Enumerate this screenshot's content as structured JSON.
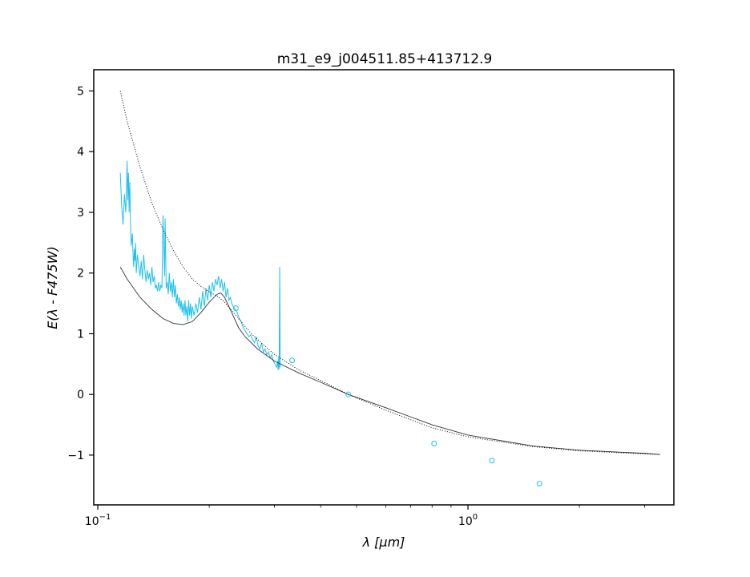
{
  "chart_data": {
    "type": "line",
    "title": "m31_e9_j004511.85+413712.9",
    "xlabel": "λ [μm]",
    "ylabel": "E(λ - F475W)",
    "xscale": "log",
    "xlim": [
      0.0975,
      3.6
    ],
    "ylim": [
      -1.82,
      5.35
    ],
    "xticks": [
      {
        "value": 0.1,
        "label_base": "10",
        "label_exp": "−1"
      },
      {
        "value": 1.0,
        "label_base": "10",
        "label_exp": "0"
      }
    ],
    "yticks": [
      {
        "value": -1,
        "label": "−1"
      },
      {
        "value": 0,
        "label": "0"
      },
      {
        "value": 1,
        "label": "1"
      },
      {
        "value": 2,
        "label": "2"
      },
      {
        "value": 3,
        "label": "3"
      },
      {
        "value": 4,
        "label": "4"
      },
      {
        "value": 5,
        "label": "5"
      }
    ],
    "grid": false,
    "colors": {
      "spectrum": "#1ec0f0",
      "photometry": "#1ec0f0",
      "model": "#333333",
      "model_dotted": "#000000"
    },
    "series": [
      {
        "style": "spectrum-line",
        "x": [
          0.115,
          0.116,
          0.117,
          0.118,
          0.119,
          0.1195,
          0.12,
          0.1205,
          0.121,
          0.1215,
          0.122,
          0.1225,
          0.123,
          0.124,
          0.1245,
          0.125,
          0.1255,
          0.126,
          0.1265,
          0.127,
          0.128,
          0.129,
          0.13,
          0.131,
          0.132,
          0.133,
          0.134,
          0.135,
          0.136,
          0.137,
          0.138,
          0.139,
          0.14,
          0.141,
          0.142,
          0.143,
          0.144,
          0.145,
          0.146,
          0.147,
          0.148,
          0.149,
          0.15,
          0.1505,
          0.151,
          0.1515,
          0.152,
          0.153,
          0.154,
          0.155,
          0.156,
          0.157,
          0.158,
          0.159,
          0.16,
          0.161,
          0.162,
          0.163,
          0.164,
          0.165,
          0.166,
          0.167,
          0.168,
          0.169,
          0.17,
          0.171,
          0.172,
          0.173,
          0.174,
          0.175,
          0.176,
          0.177,
          0.178,
          0.179,
          0.18,
          0.182,
          0.184,
          0.186,
          0.188,
          0.19,
          0.192,
          0.194,
          0.196,
          0.198,
          0.2,
          0.202,
          0.204,
          0.206,
          0.208,
          0.21,
          0.212,
          0.214,
          0.216,
          0.218,
          0.22,
          0.222,
          0.224,
          0.226,
          0.228,
          0.23,
          0.232,
          0.235,
          0.238,
          0.241,
          0.244,
          0.247,
          0.25,
          0.253,
          0.256,
          0.259,
          0.262,
          0.265,
          0.268,
          0.271,
          0.274,
          0.277,
          0.28,
          0.283,
          0.286,
          0.289,
          0.292,
          0.295,
          0.298,
          0.301,
          0.304,
          0.306,
          0.307,
          0.308,
          0.309,
          0.31,
          0.311
        ],
        "y": [
          3.65,
          3.1,
          2.8,
          3.3,
          3.0,
          3.4,
          3.85,
          3.2,
          3.65,
          3.0,
          3.5,
          2.9,
          2.45,
          2.65,
          2.3,
          2.1,
          2.4,
          2.2,
          2.5,
          2.0,
          2.3,
          2.1,
          1.95,
          2.2,
          1.9,
          2.3,
          2.05,
          1.85,
          2.05,
          1.9,
          2.0,
          1.8,
          2.1,
          1.85,
          1.95,
          1.75,
          1.8,
          1.7,
          1.85,
          1.7,
          1.8,
          1.75,
          2.95,
          2.6,
          2.3,
          1.95,
          2.9,
          1.75,
          1.85,
          1.65,
          2.0,
          1.7,
          1.85,
          1.6,
          1.9,
          1.6,
          1.8,
          1.5,
          1.65,
          1.45,
          1.6,
          1.4,
          1.55,
          1.35,
          1.5,
          1.3,
          1.55,
          1.3,
          1.45,
          1.2,
          1.55,
          1.3,
          1.5,
          1.25,
          1.45,
          1.3,
          1.5,
          1.35,
          1.6,
          1.4,
          1.7,
          1.45,
          1.75,
          1.55,
          1.8,
          1.6,
          1.85,
          1.7,
          1.9,
          1.8,
          1.95,
          1.75,
          1.9,
          1.7,
          1.85,
          1.6,
          1.75,
          1.55,
          1.6,
          1.5,
          1.45,
          1.4,
          1.35,
          1.25,
          1.2,
          1.1,
          1.05,
          1.0,
          0.95,
          0.98,
          0.9,
          0.85,
          0.95,
          0.8,
          0.75,
          0.85,
          0.7,
          0.75,
          0.65,
          0.7,
          0.6,
          0.65,
          0.55,
          0.5,
          0.45,
          0.55,
          0.4,
          0.6,
          0.42,
          2.1,
          0.45
        ]
      },
      {
        "style": "model-solid",
        "x": [
          0.115,
          0.12,
          0.13,
          0.14,
          0.15,
          0.16,
          0.17,
          0.18,
          0.19,
          0.2,
          0.21,
          0.215,
          0.22,
          0.23,
          0.24,
          0.25,
          0.27,
          0.3,
          0.35,
          0.4,
          0.475,
          0.6,
          0.8,
          1.0,
          1.5,
          2.0,
          3.0,
          3.3
        ],
        "y": [
          2.1,
          1.9,
          1.6,
          1.4,
          1.25,
          1.17,
          1.15,
          1.2,
          1.35,
          1.52,
          1.65,
          1.67,
          1.6,
          1.35,
          1.1,
          0.95,
          0.75,
          0.55,
          0.35,
          0.2,
          0.0,
          -0.22,
          -0.5,
          -0.67,
          -0.85,
          -0.92,
          -0.97,
          -0.99
        ]
      },
      {
        "style": "model-dotted",
        "x": [
          0.115,
          0.12,
          0.13,
          0.14,
          0.15,
          0.16,
          0.17,
          0.18,
          0.19,
          0.2,
          0.21,
          0.22,
          0.24,
          0.26,
          0.28,
          0.3,
          0.35,
          0.4,
          0.475,
          0.6,
          0.8,
          1.0,
          1.5,
          2.0,
          3.0,
          3.3
        ],
        "y": [
          5.0,
          4.5,
          3.75,
          3.15,
          2.72,
          2.37,
          2.1,
          1.9,
          1.78,
          1.69,
          1.62,
          1.52,
          1.25,
          1.0,
          0.82,
          0.66,
          0.4,
          0.23,
          0.0,
          -0.26,
          -0.55,
          -0.7,
          -0.86,
          -0.93,
          -0.98,
          -0.99
        ]
      },
      {
        "style": "photometry-points",
        "x": [
          0.236,
          0.335,
          0.475,
          0.81,
          1.16,
          1.56
        ],
        "y": [
          1.42,
          0.56,
          0.0,
          -0.81,
          -1.09,
          -1.47
        ]
      }
    ]
  }
}
